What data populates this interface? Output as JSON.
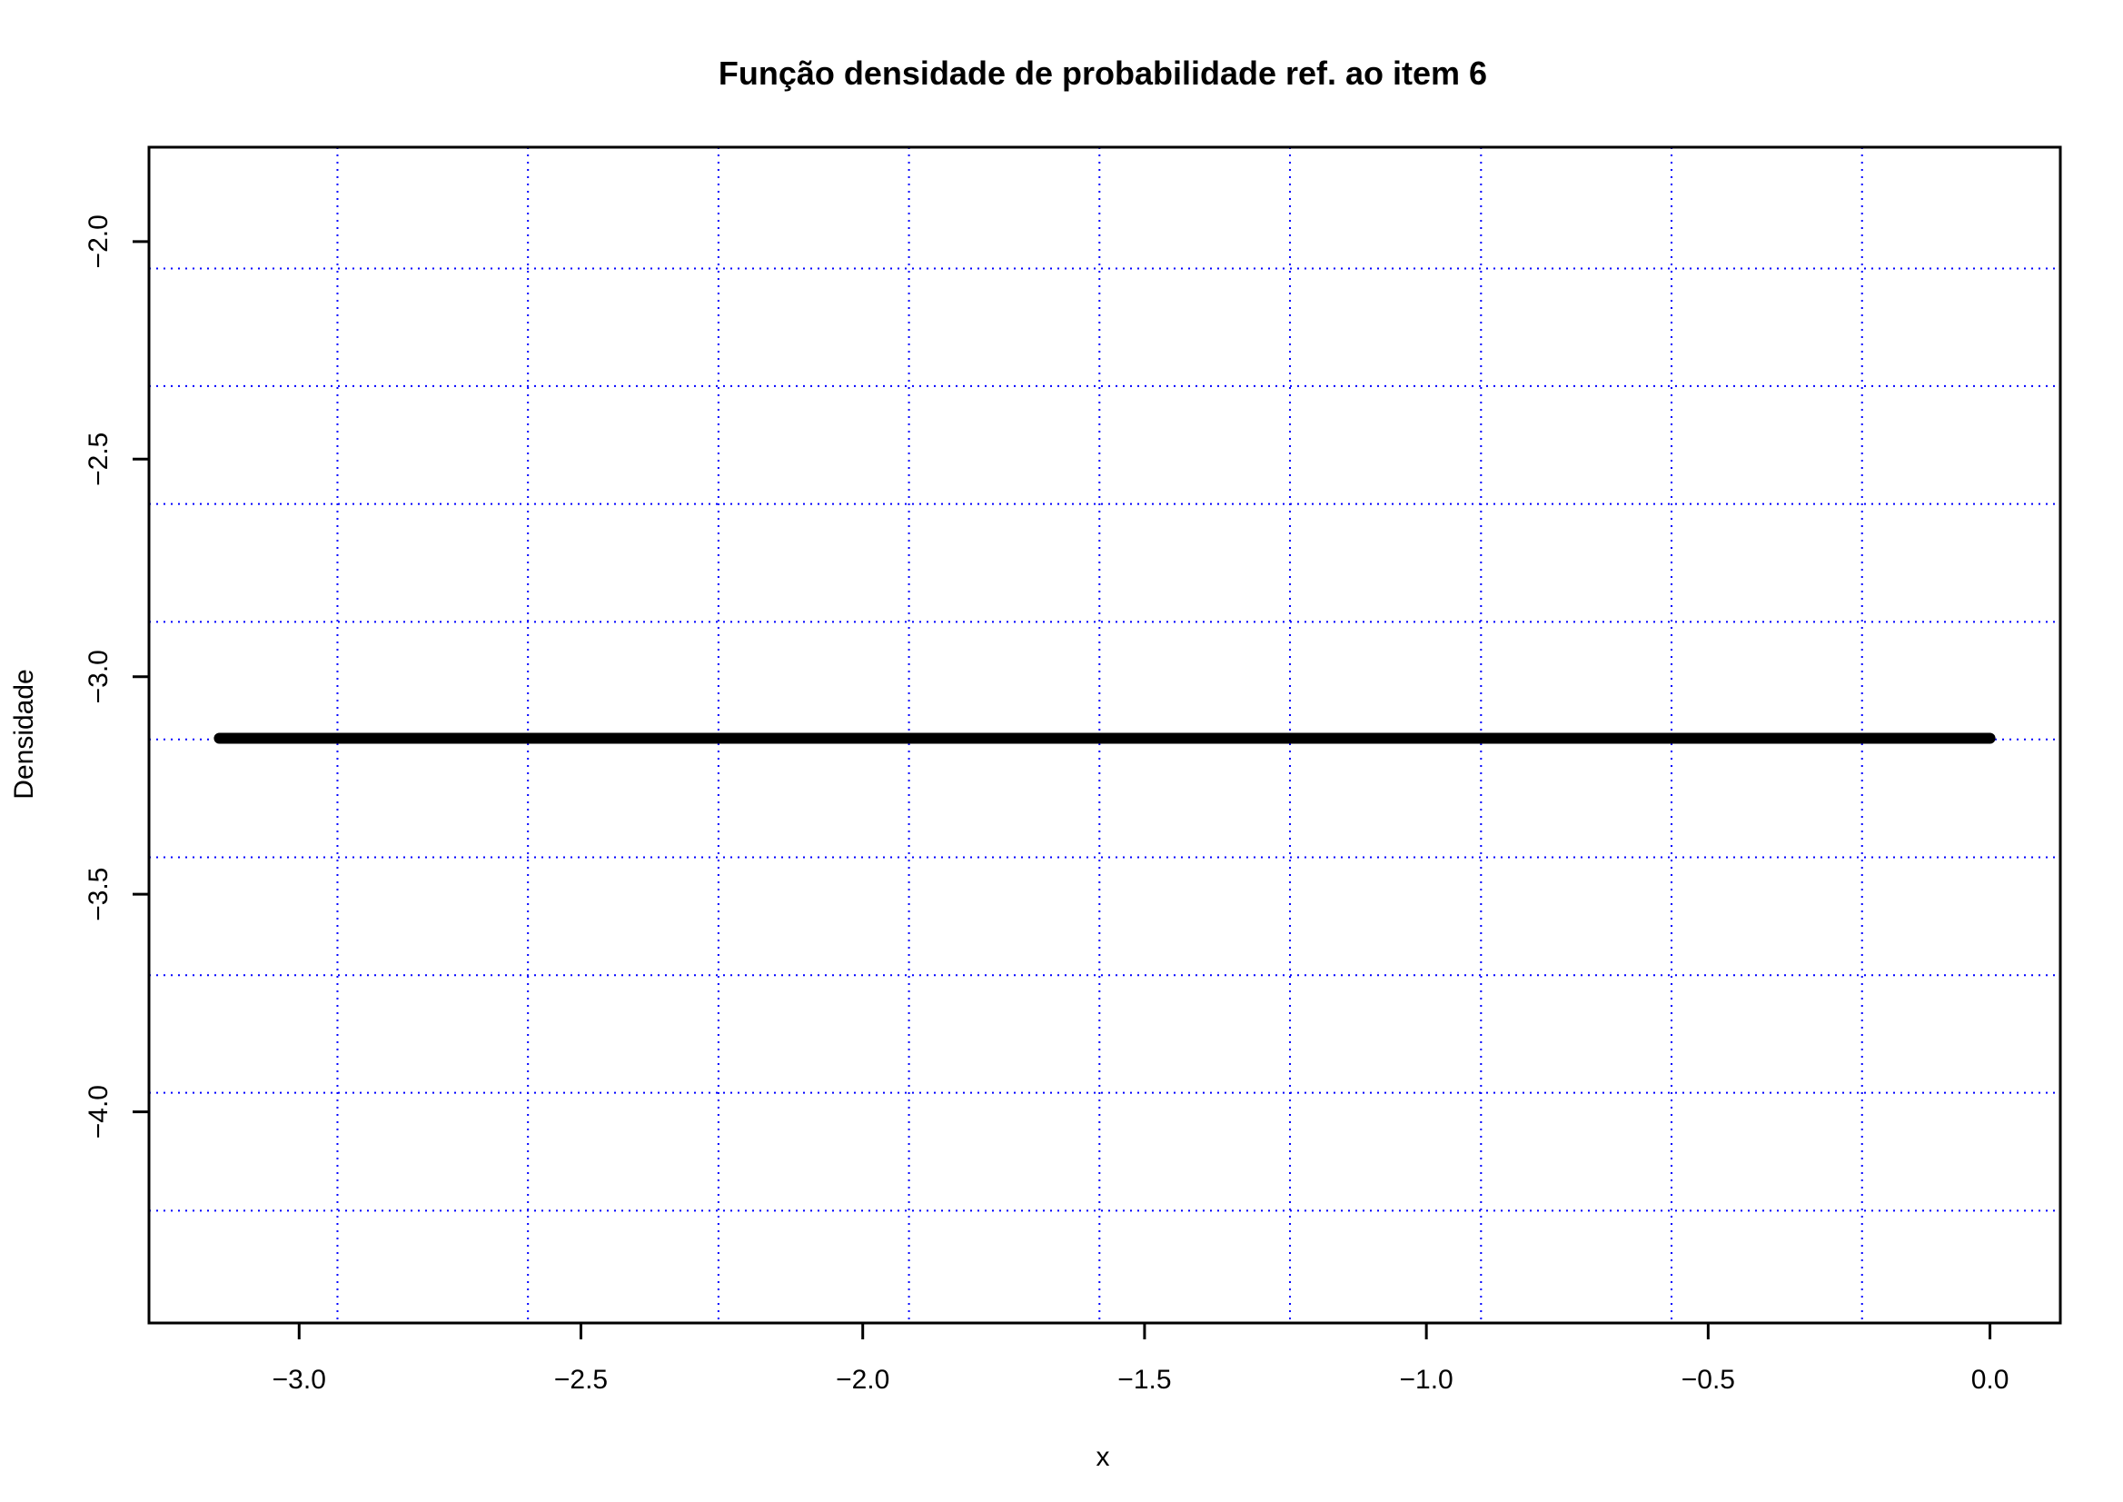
{
  "chart_data": {
    "type": "line",
    "title": "Função densidade de probabilidade ref. ao item 6",
    "xlabel": "x",
    "ylabel": "Densidade",
    "xlim": [
      -3.2664,
      0.1248
    ],
    "ylim": [
      -4.4852,
      -1.7832
    ],
    "x_ticks": [
      -3.0,
      -2.5,
      -2.0,
      -1.5,
      -1.0,
      -0.5,
      0.0
    ],
    "x_tick_labels": [
      "−3.0",
      "−2.5",
      "−2.0",
      "−1.5",
      "−1.0",
      "−0.5",
      "0.0"
    ],
    "y_ticks": [
      -2.0,
      -2.5,
      -3.0,
      -3.5,
      -4.0
    ],
    "y_tick_labels": [
      "−2.0",
      "−2.5",
      "−3.0",
      "−3.5",
      "−4.0"
    ],
    "grid": true,
    "grid_color": "#0000ff",
    "grid_x": [
      -2.932,
      -2.594,
      -2.256,
      -1.918,
      -1.58,
      -1.242,
      -0.903,
      -0.565,
      -0.227
    ],
    "grid_y": [
      -2.062,
      -2.332,
      -2.603,
      -2.874,
      -3.144,
      -3.415,
      -3.686,
      -3.956,
      -4.227
    ],
    "series": [
      {
        "color": "#000000",
        "x": [
          -3.1416,
          0.0
        ],
        "y": [
          -3.1416,
          -3.1416
        ]
      }
    ]
  }
}
